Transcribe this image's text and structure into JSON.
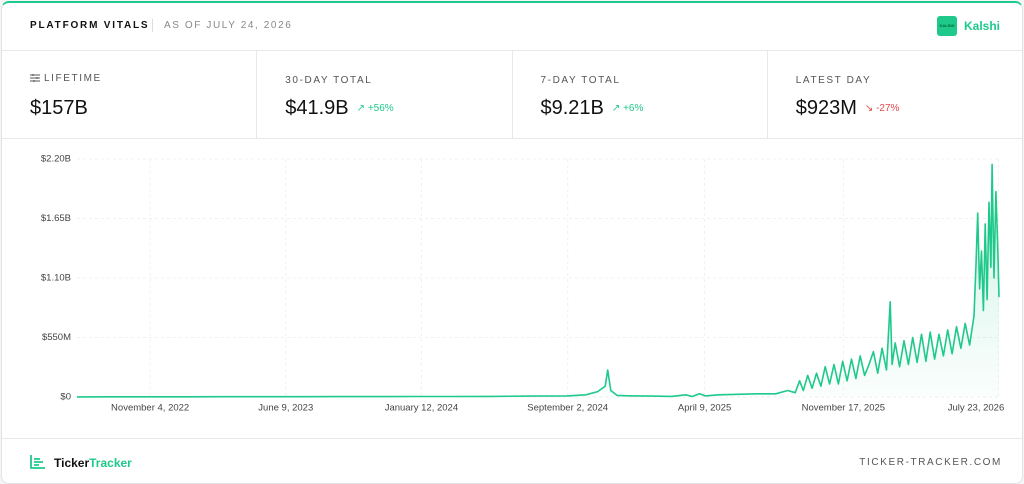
{
  "header": {
    "title": "PLATFORM VITALS",
    "as_of": "AS OF JULY 24, 2026",
    "brand": "Kalshi",
    "brand_logo": "KALSHI"
  },
  "stats": [
    {
      "label": "LIFETIME",
      "value": "$157B"
    },
    {
      "label": "30-DAY TOTAL",
      "value": "$41.9B",
      "change": "+56%"
    },
    {
      "label": "7-DAY TOTAL",
      "value": "$9.21B",
      "change": "+6%"
    },
    {
      "label": "LATEST DAY",
      "value": "$923M",
      "change": "-27%"
    }
  ],
  "chart_data": {
    "type": "area",
    "color": "#1fc98b",
    "grid": true,
    "xlim": [
      "2022-07-10",
      "2026-07-24"
    ],
    "xticks": [
      {
        "value": "2022-11-04",
        "label": "November 4, 2022"
      },
      {
        "value": "2023-06-09",
        "label": "June 9, 2023"
      },
      {
        "value": "2024-01-12",
        "label": "January 12, 2024"
      },
      {
        "value": "2024-09-02",
        "label": "September 2, 2024"
      },
      {
        "value": "2025-04-09",
        "label": "April 9, 2025"
      },
      {
        "value": "2025-11-17",
        "label": "November 17, 2025"
      },
      {
        "value": "2026-07-23",
        "label": "July 23, 2026"
      }
    ],
    "ylim": [
      0,
      2.2
    ],
    "yticks": [
      {
        "value": 0,
        "label": "$0"
      },
      {
        "value": 0.55,
        "label": "$550M"
      },
      {
        "value": 1.1,
        "label": "$1.10B"
      },
      {
        "value": 1.65,
        "label": "$1.65B"
      },
      {
        "value": 2.2,
        "label": "$2.20B"
      }
    ],
    "x": [
      "2022-07-10",
      "2022-09-01",
      "2022-11-01",
      "2023-01-01",
      "2023-03-01",
      "2023-05-01",
      "2023-07-01",
      "2023-09-01",
      "2023-11-01",
      "2024-01-01",
      "2024-03-01",
      "2024-05-01",
      "2024-07-01",
      "2024-09-01",
      "2024-10-01",
      "2024-10-20",
      "2024-11-01",
      "2024-11-05",
      "2024-11-10",
      "2024-11-20",
      "2024-12-15",
      "2025-01-15",
      "2025-02-15",
      "2025-03-10",
      "2025-03-20",
      "2025-04-01",
      "2025-04-10",
      "2025-05-01",
      "2025-06-01",
      "2025-07-01",
      "2025-08-01",
      "2025-08-20",
      "2025-09-01",
      "2025-09-08",
      "2025-09-14",
      "2025-09-21",
      "2025-09-28",
      "2025-10-05",
      "2025-10-12",
      "2025-10-19",
      "2025-10-26",
      "2025-11-02",
      "2025-11-09",
      "2025-11-16",
      "2025-11-23",
      "2025-11-30",
      "2025-12-07",
      "2025-12-14",
      "2025-12-21",
      "2025-12-28",
      "2026-01-04",
      "2026-01-11",
      "2026-01-18",
      "2026-01-25",
      "2026-01-31",
      "2026-02-03",
      "2026-02-08",
      "2026-02-15",
      "2026-02-22",
      "2026-03-01",
      "2026-03-08",
      "2026-03-15",
      "2026-03-22",
      "2026-03-29",
      "2026-04-05",
      "2026-04-12",
      "2026-04-19",
      "2026-04-26",
      "2026-05-03",
      "2026-05-10",
      "2026-05-17",
      "2026-05-24",
      "2026-05-31",
      "2026-06-07",
      "2026-06-14",
      "2026-06-17",
      "2026-06-20",
      "2026-06-23",
      "2026-06-26",
      "2026-06-29",
      "2026-07-02",
      "2026-07-05",
      "2026-07-08",
      "2026-07-11",
      "2026-07-13",
      "2026-07-16",
      "2026-07-19",
      "2026-07-22",
      "2026-07-24"
    ],
    "values": [
      0.001,
      0.002,
      0.002,
      0.002,
      0.003,
      0.003,
      0.003,
      0.004,
      0.004,
      0.005,
      0.005,
      0.006,
      0.008,
      0.01,
      0.02,
      0.05,
      0.1,
      0.25,
      0.06,
      0.015,
      0.01,
      0.008,
      0.006,
      0.02,
      0.005,
      0.03,
      0.01,
      0.02,
      0.025,
      0.03,
      0.03,
      0.06,
      0.04,
      0.15,
      0.06,
      0.2,
      0.08,
      0.22,
      0.1,
      0.28,
      0.12,
      0.3,
      0.12,
      0.33,
      0.15,
      0.35,
      0.17,
      0.38,
      0.2,
      0.3,
      0.42,
      0.22,
      0.45,
      0.25,
      0.88,
      0.3,
      0.5,
      0.28,
      0.52,
      0.3,
      0.55,
      0.32,
      0.58,
      0.33,
      0.6,
      0.35,
      0.58,
      0.38,
      0.62,
      0.4,
      0.65,
      0.45,
      0.68,
      0.48,
      0.75,
      1.2,
      1.7,
      1.0,
      1.35,
      0.8,
      1.6,
      0.9,
      1.8,
      1.2,
      2.15,
      1.1,
      1.9,
      1.4,
      0.923
    ]
  },
  "footer": {
    "brand": [
      "Ticker",
      "Tracker"
    ],
    "url": "TICKER-TRACKER.COM"
  }
}
